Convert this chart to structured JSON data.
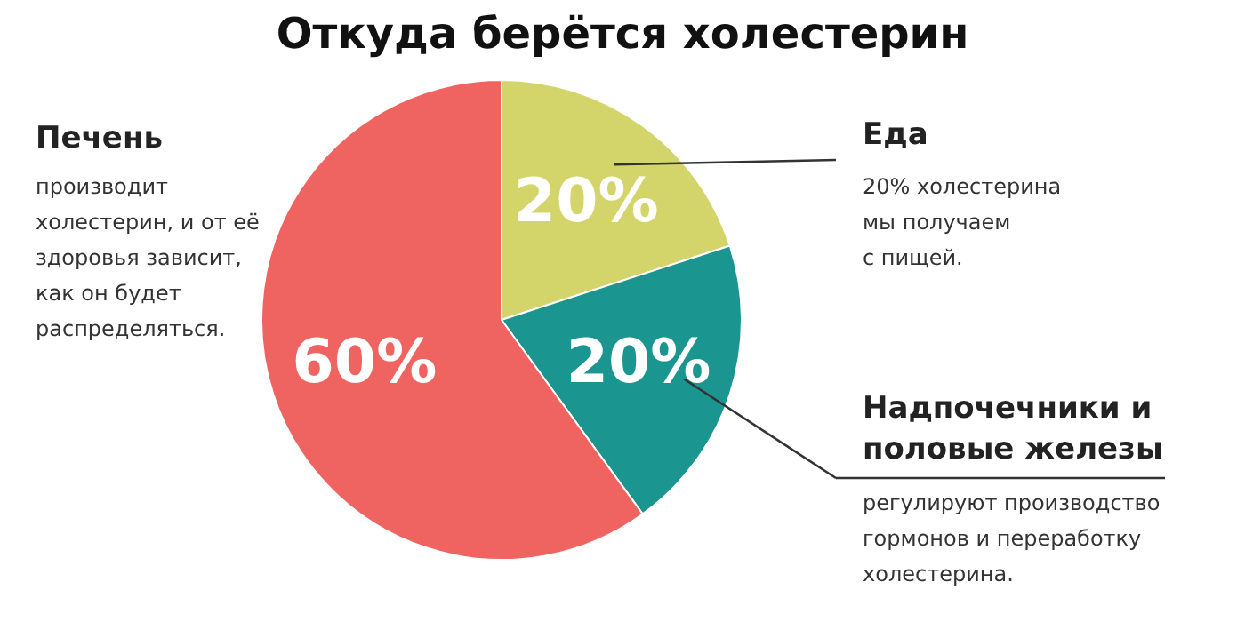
{
  "chart_data": {
    "type": "pie",
    "title": "Откуда берётся холестерин",
    "categories": [
      "Еда",
      "Надпочечники и\nполовые железы",
      "Печень"
    ],
    "values": [
      20,
      20,
      60
    ],
    "colors": [
      "#d3d56b",
      "#1a9590",
      "#ef6461"
    ],
    "value_labels": [
      "20%",
      "20%",
      "60%"
    ],
    "annotations": [
      "20% холестерина\nмы получаем\nс пищей.",
      "регулируют производство\nгормонов и переработку\nхолестерина.",
      "производит\nхолестерин, и от её\nздоровья зависит,\nкак он будет\nраспределяться."
    ]
  }
}
